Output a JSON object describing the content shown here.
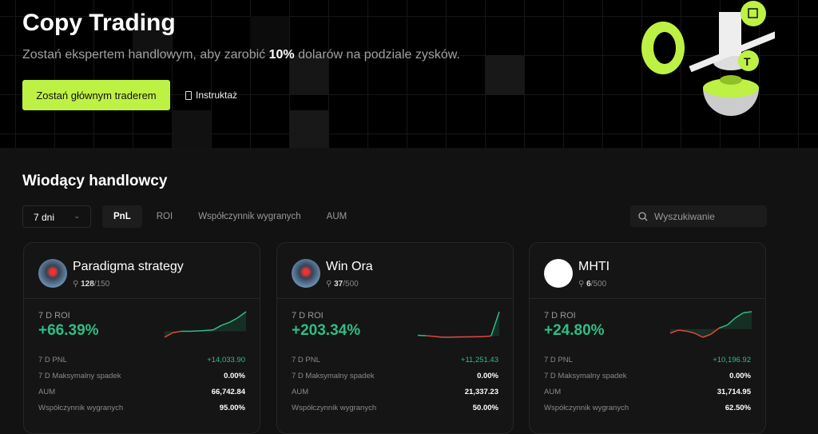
{
  "hero": {
    "title": "Copy Trading",
    "subtitle_pre": "Zostań ekspertem handlowym, aby zarobić ",
    "subtitle_bold": "10%",
    "subtitle_post": " dolarów na podziale zysków.",
    "cta_label": "Zostań głównym traderem",
    "guide_label": "Instruktaż",
    "accent": "#bdf144"
  },
  "section": {
    "title": "Wiodący handlowcy",
    "period": "7 dni",
    "tabs": [
      "PnL",
      "ROI",
      "Współczynnik wygranych",
      "AUM"
    ],
    "active_tab": "PnL",
    "search_placeholder": "Wyszukiwanie"
  },
  "traders": [
    {
      "name": "Paradigma strategy",
      "followers": "128",
      "max_followers": "/150",
      "roi_label": "7 D ROI",
      "roi": "+66.39%",
      "spark": [
        -4,
        -1,
        0,
        0,
        0.2,
        0.5,
        1,
        4,
        6,
        9,
        13
      ],
      "stats": [
        {
          "label": "7 D PNL",
          "value": "+14,033.90"
        },
        {
          "label": "7 D Maksymalny spadek",
          "value": "0.00%"
        },
        {
          "label": "AUM",
          "value": "66,742.84"
        },
        {
          "label": "Współczynnik wygranych",
          "value": "95.00%"
        }
      ]
    },
    {
      "name": "Win Ora",
      "followers": "37",
      "max_followers": "/500",
      "roi_label": "7 D ROI",
      "roi": "+203.34%",
      "spark": [
        0.5,
        0.2,
        -0.3,
        -1,
        -1,
        -0.8,
        -0.7,
        -0.6,
        -0.5,
        0,
        18
      ],
      "stats": [
        {
          "label": "7 D PNL",
          "value": "+11,251.43"
        },
        {
          "label": "7 D Maksymalny spadek",
          "value": "0.00%"
        },
        {
          "label": "AUM",
          "value": "21,337.23"
        },
        {
          "label": "Współczynnik wygranych",
          "value": "50.00%"
        }
      ]
    },
    {
      "name": "MHTI",
      "followers": "6",
      "max_followers": "/500",
      "roi_label": "7 D ROI",
      "roi": "+24.80%",
      "spark": [
        -4,
        -1,
        -2,
        -4,
        -8,
        -5,
        1,
        4,
        11,
        16,
        17
      ],
      "stats": [
        {
          "label": "7 D PNL",
          "value": "+10,196.92"
        },
        {
          "label": "7 D Maksymalny spadek",
          "value": "0.00%"
        },
        {
          "label": "AUM",
          "value": "31,714.95"
        },
        {
          "label": "Współczynnik wygranych",
          "value": "62.50%"
        }
      ]
    }
  ],
  "colors": {
    "positive": "#2ebd85",
    "negative": "#e0483d"
  }
}
